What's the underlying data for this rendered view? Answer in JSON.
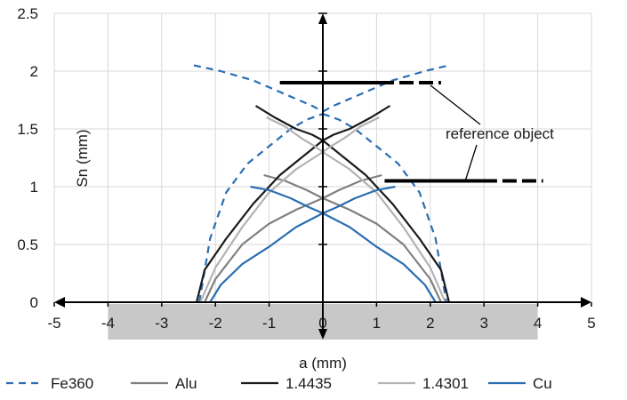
{
  "chart_data": {
    "type": "line",
    "xlabel": "a (mm)",
    "ylabel": "Sn (mm)",
    "xlim": [
      -5,
      5
    ],
    "ylim": [
      0,
      2.5
    ],
    "x_ticks": [
      "-5",
      "-4",
      "-3",
      "-2",
      "-1",
      "0",
      "1",
      "2",
      "3",
      "4",
      "5"
    ],
    "y_ticks": [
      "0",
      "0.5",
      "1",
      "1.5",
      "2",
      "2.5"
    ],
    "grid": true,
    "legend": "bottom",
    "reference_object": {
      "label": "reference object",
      "x_range": [
        -4,
        4
      ],
      "bars": [
        {
          "y": 1.9,
          "x_start": -0.8,
          "x_end": 2.2
        },
        {
          "y": 1.05,
          "x_start": 1.15,
          "x_end": 4.1
        }
      ]
    },
    "series": [
      {
        "name": "Fe360",
        "color": "#2a6db3",
        "dash": true,
        "branches": [
          {
            "x": [
              -2.3,
              -2.1,
              -1.8,
              -1.4,
              -1.0,
              -0.6,
              -0.3,
              0.0
            ],
            "y": [
              0.0,
              0.55,
              0.95,
              1.2,
              1.35,
              1.5,
              1.58,
              1.63
            ]
          },
          {
            "x": [
              -2.4,
              -1.9,
              -1.3,
              -0.7,
              -0.2,
              0.0
            ],
            "y": [
              2.05,
              2.0,
              1.92,
              1.8,
              1.7,
              1.65
            ]
          },
          {
            "x": [
              0.0,
              0.3,
              0.6,
              1.0,
              1.4,
              1.8,
              2.1,
              2.3
            ],
            "y": [
              1.63,
              1.58,
              1.5,
              1.35,
              1.2,
              0.95,
              0.55,
              0.0
            ]
          },
          {
            "x": [
              0.0,
              0.2,
              0.7,
              1.3,
              1.9,
              2.35
            ],
            "y": [
              1.65,
              1.7,
              1.8,
              1.92,
              2.0,
              2.05
            ]
          }
        ]
      },
      {
        "name": "Alu",
        "color": "#808080",
        "dash": false,
        "branches": [
          {
            "x": [
              -2.2,
              -2.0,
              -1.5,
              -1.0,
              -0.5,
              0.0
            ],
            "y": [
              0.0,
              0.2,
              0.5,
              0.68,
              0.8,
              0.9
            ]
          },
          {
            "x": [
              -1.1,
              -0.7,
              -0.3,
              0.0
            ],
            "y": [
              1.1,
              1.05,
              0.97,
              0.9
            ]
          },
          {
            "x": [
              0.0,
              0.5,
              1.0,
              1.5,
              2.0,
              2.2
            ],
            "y": [
              0.9,
              0.8,
              0.68,
              0.5,
              0.2,
              0.0
            ]
          },
          {
            "x": [
              0.0,
              0.3,
              0.7,
              1.1
            ],
            "y": [
              0.9,
              0.97,
              1.05,
              1.1
            ]
          }
        ]
      },
      {
        "name": "1.4435",
        "color": "#1a1a1a",
        "dash": false,
        "branches": [
          {
            "x": [
              -2.35,
              -2.2,
              -1.8,
              -1.3,
              -0.8,
              -0.4,
              0.0
            ],
            "y": [
              0.0,
              0.28,
              0.55,
              0.85,
              1.1,
              1.25,
              1.4
            ]
          },
          {
            "x": [
              -1.25,
              -0.9,
              -0.5,
              -0.2,
              0.0
            ],
            "y": [
              1.7,
              1.6,
              1.5,
              1.45,
              1.4
            ]
          },
          {
            "x": [
              0.0,
              0.4,
              0.8,
              1.3,
              1.8,
              2.2,
              2.35
            ],
            "y": [
              1.4,
              1.25,
              1.1,
              0.85,
              0.55,
              0.28,
              0.0
            ]
          },
          {
            "x": [
              0.0,
              0.2,
              0.5,
              0.9,
              1.25
            ],
            "y": [
              1.4,
              1.45,
              1.5,
              1.6,
              1.7
            ]
          }
        ]
      },
      {
        "name": "1.4301",
        "color": "#b3b3b3",
        "dash": false,
        "branches": [
          {
            "x": [
              -2.28,
              -2.0,
              -1.5,
              -1.0,
              -0.5,
              0.0
            ],
            "y": [
              0.0,
              0.3,
              0.65,
              0.95,
              1.15,
              1.3
            ]
          },
          {
            "x": [
              -1.05,
              -0.7,
              -0.4,
              -0.15,
              0.0
            ],
            "y": [
              1.6,
              1.52,
              1.42,
              1.35,
              1.3
            ]
          },
          {
            "x": [
              0.0,
              0.5,
              1.0,
              1.5,
              2.0,
              2.28
            ],
            "y": [
              1.3,
              1.15,
              0.95,
              0.65,
              0.3,
              0.0
            ]
          },
          {
            "x": [
              0.0,
              0.15,
              0.4,
              0.7,
              1.05
            ],
            "y": [
              1.3,
              1.35,
              1.42,
              1.52,
              1.6
            ]
          }
        ]
      },
      {
        "name": "Cu",
        "color": "#2a6db3",
        "dash": false,
        "branches": [
          {
            "x": [
              -2.1,
              -1.9,
              -1.5,
              -1.0,
              -0.5,
              0.0
            ],
            "y": [
              0.0,
              0.15,
              0.33,
              0.48,
              0.65,
              0.77
            ]
          },
          {
            "x": [
              -1.35,
              -1.0,
              -0.6,
              -0.25,
              0.0
            ],
            "y": [
              1.0,
              0.97,
              0.9,
              0.82,
              0.77
            ]
          },
          {
            "x": [
              0.0,
              0.5,
              1.0,
              1.5,
              1.9,
              2.1
            ],
            "y": [
              0.77,
              0.65,
              0.48,
              0.33,
              0.15,
              0.0
            ]
          },
          {
            "x": [
              0.0,
              0.25,
              0.6,
              1.0,
              1.35
            ],
            "y": [
              0.77,
              0.82,
              0.9,
              0.97,
              1.0
            ]
          }
        ]
      }
    ]
  }
}
